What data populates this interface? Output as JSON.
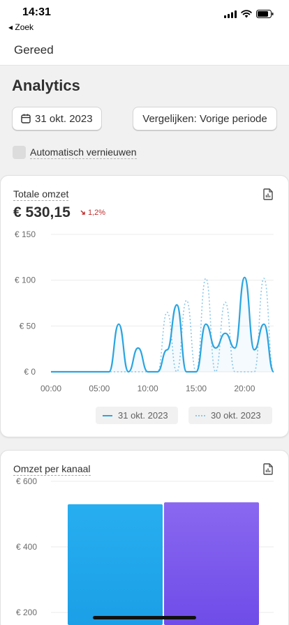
{
  "status_bar": {
    "time": "14:31",
    "back_label": "◂ Zoek"
  },
  "nav": {
    "done_label": "Gereed"
  },
  "page": {
    "title": "Analytics"
  },
  "controls": {
    "date_button": "31 okt. 2023",
    "compare_button": "Vergelijken: Vorige periode",
    "auto_refresh_label": "Automatisch vernieuwen",
    "auto_refresh_checked": false
  },
  "total_sales": {
    "title": "Totale omzet",
    "value": "€ 530,15",
    "change": "1,2%",
    "change_direction": "down"
  },
  "channel_sales": {
    "title": "Omzet per kanaal"
  },
  "colors": {
    "primary": "#2aa4e0",
    "secondary": "#7a5cf0",
    "negative": "#c22d2d"
  },
  "chart_data": [
    {
      "type": "line",
      "title": "Totale omzet",
      "y_tick_labels": [
        "€ 150",
        "€ 100",
        "€ 50",
        "€ 0"
      ],
      "y_ticks": [
        150,
        100,
        50,
        0
      ],
      "x_tick_labels": [
        "00:00",
        "05:00",
        "10:00",
        "15:00",
        "20:00"
      ],
      "x_ticks": [
        0,
        5,
        10,
        15,
        20
      ],
      "ylim": [
        0,
        150
      ],
      "xlim": [
        0,
        23
      ],
      "grid": true,
      "legend_position": "bottom-right",
      "x": [
        0,
        1,
        2,
        3,
        4,
        5,
        6,
        7,
        8,
        9,
        10,
        11,
        12,
        13,
        14,
        15,
        16,
        17,
        18,
        19,
        20,
        21,
        22,
        23
      ],
      "series": [
        {
          "name": "31 okt. 2023",
          "style": "solid",
          "color": "#2aa4e0",
          "values": [
            0,
            0,
            0,
            0,
            0,
            0,
            0,
            52,
            0,
            26,
            0,
            0,
            24,
            73,
            0,
            0,
            52,
            26,
            42,
            26,
            103,
            24,
            52,
            0
          ]
        },
        {
          "name": "30 okt. 2023",
          "style": "dotted",
          "color": "#8cc7ea",
          "values": [
            0,
            0,
            0,
            0,
            0,
            0,
            0,
            0,
            0,
            0,
            0,
            0,
            65,
            0,
            78,
            0,
            102,
            0,
            76,
            0,
            0,
            0,
            102,
            0
          ]
        }
      ]
    },
    {
      "type": "bar",
      "title": "Omzet per kanaal",
      "y_tick_labels": [
        "€ 600",
        "€ 400",
        "€ 200"
      ],
      "y_ticks": [
        600,
        400,
        200
      ],
      "ylim": [
        0,
        600
      ],
      "categories": [
        "",
        ""
      ],
      "values": [
        530,
        536
      ],
      "colors": [
        "#1ea7ec",
        "#7a56ec"
      ]
    }
  ]
}
